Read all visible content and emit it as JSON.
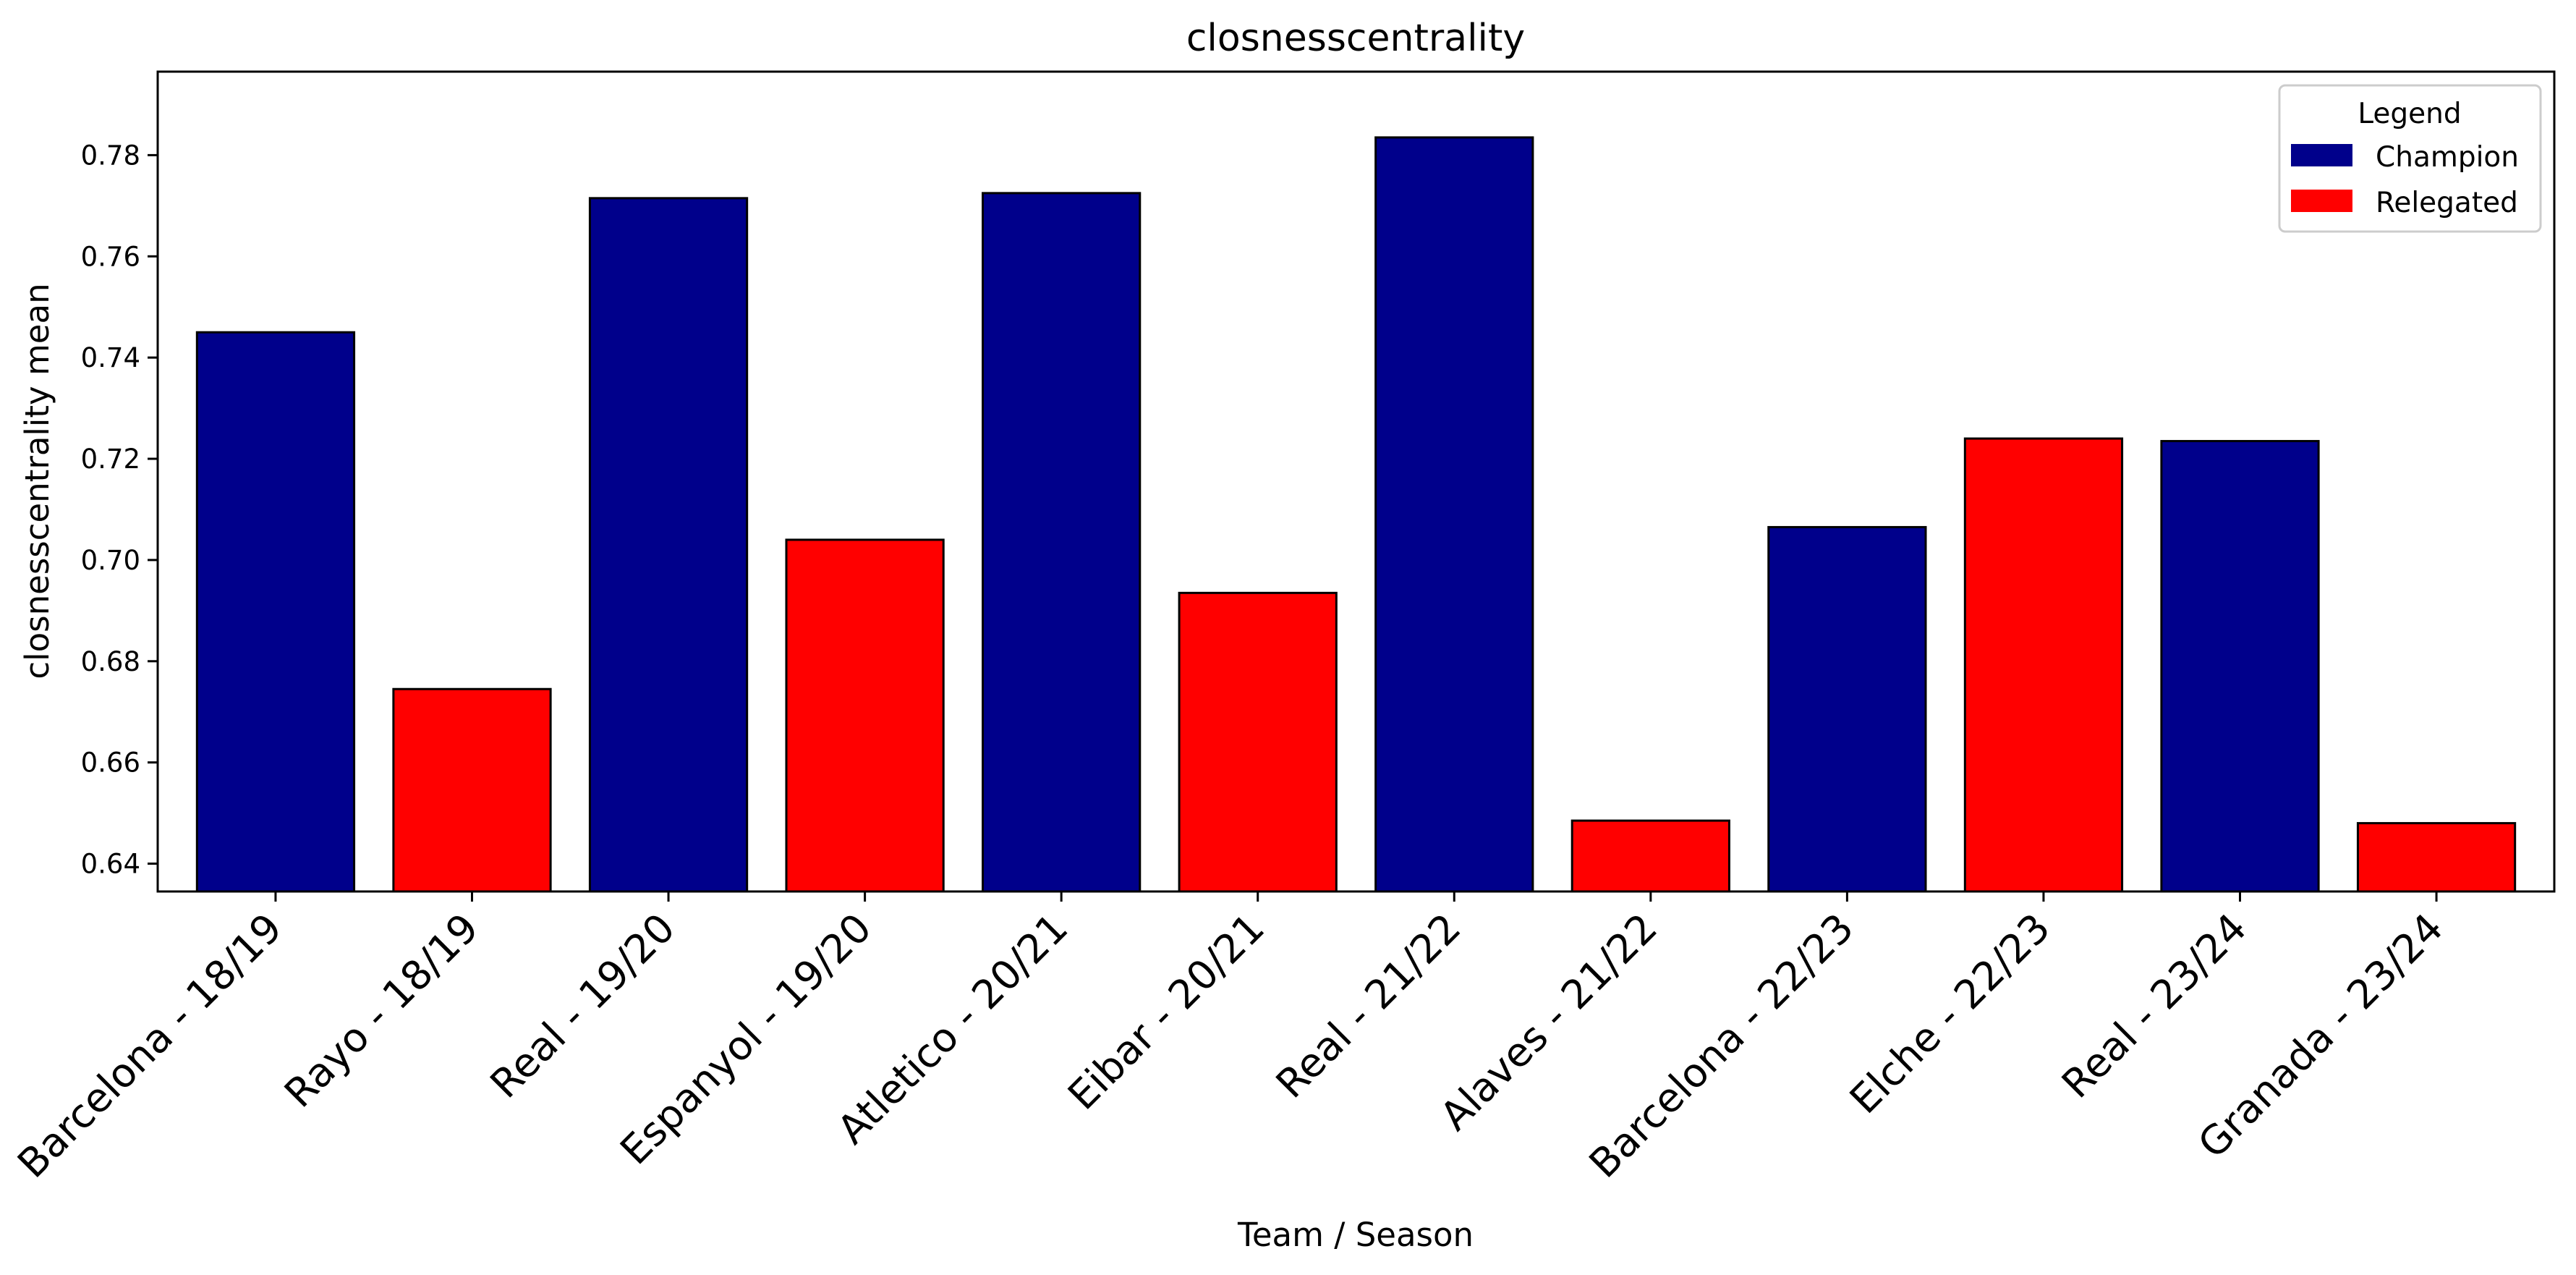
{
  "chart_data": {
    "type": "bar",
    "title": "closnesscentrality",
    "xlabel": "Team / Season",
    "ylabel": "closnesscentrality mean",
    "ylim": [
      0.6345,
      0.7965
    ],
    "yticks": [
      "0.64",
      "0.66",
      "0.68",
      "0.70",
      "0.72",
      "0.74",
      "0.76",
      "0.78"
    ],
    "categories": [
      "Barcelona - 18/19",
      "Rayo - 18/19",
      "Real - 19/20",
      "Espanyol - 19/20",
      "Atletico - 20/21",
      "Eibar - 20/21",
      "Real - 21/22",
      "Alaves - 21/22",
      "Barcelona - 22/23",
      "Elche - 22/23",
      "Real - 23/24",
      "Granada - 23/24"
    ],
    "values": [
      0.745,
      0.6745,
      0.7715,
      0.704,
      0.7725,
      0.6935,
      0.7835,
      0.6485,
      0.7065,
      0.724,
      0.7235,
      0.648
    ],
    "groups": [
      "Champion",
      "Relegated",
      "Champion",
      "Relegated",
      "Champion",
      "Relegated",
      "Champion",
      "Relegated",
      "Champion",
      "Relegated",
      "Champion",
      "Relegated"
    ],
    "colors": {
      "Champion": "#00008b",
      "Relegated": "#ff0000"
    },
    "grid": false,
    "legend": {
      "title": "Legend",
      "placement": "top-right",
      "items": [
        "Champion",
        "Relegated"
      ]
    }
  }
}
